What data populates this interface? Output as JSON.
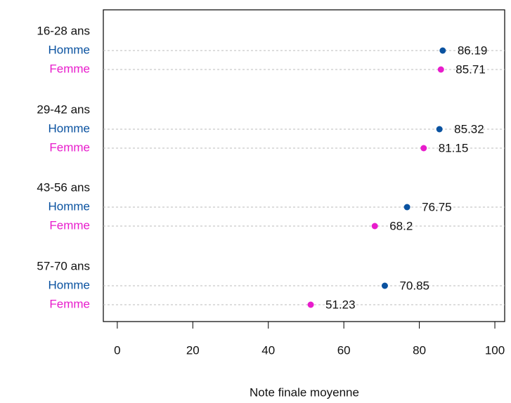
{
  "chart_data": {
    "type": "dotchart",
    "xlabel": "Note finale moyenne",
    "categories": [
      "16-28 ans",
      "29-42 ans",
      "43-56 ans",
      "57-70 ans"
    ],
    "series": [
      {
        "name": "Homme",
        "color": "#0a52a0",
        "values": [
          86.19,
          85.32,
          76.75,
          70.85
        ]
      },
      {
        "name": "Femme",
        "color": "#e81ccc",
        "values": [
          85.71,
          81.15,
          68.2,
          51.23
        ]
      }
    ],
    "xlim": [
      -3.7,
      102.6
    ],
    "xticks": [
      0,
      20,
      40,
      60,
      80,
      100
    ],
    "grid": true
  }
}
